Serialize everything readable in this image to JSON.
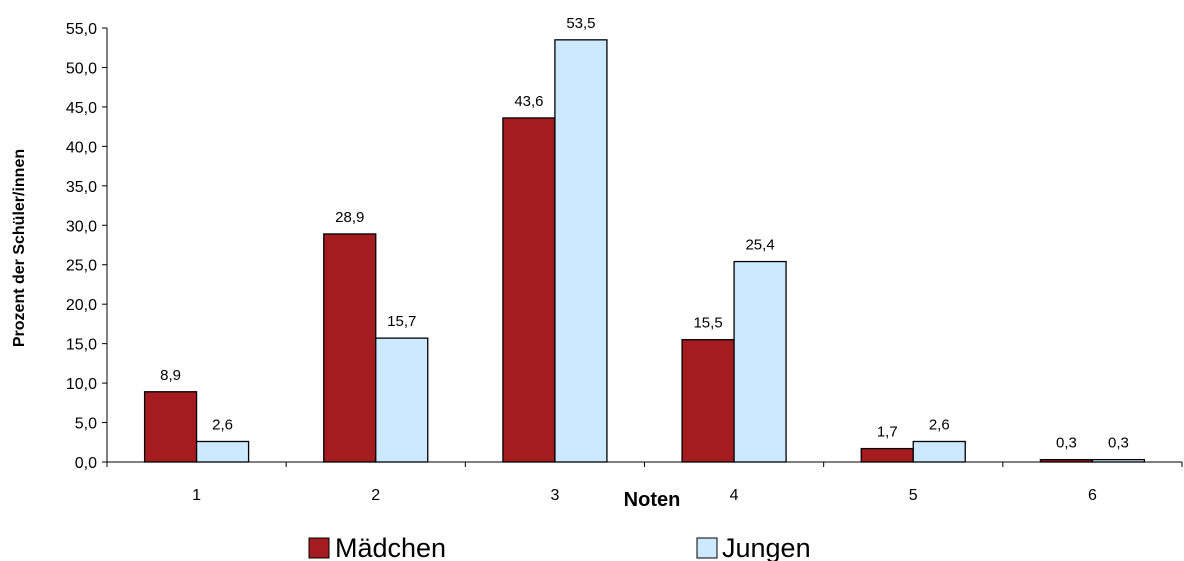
{
  "chart_data": {
    "type": "bar",
    "categories": [
      "1",
      "2",
      "3",
      "4",
      "5",
      "6"
    ],
    "series": [
      {
        "name": "Mädchen",
        "values": [
          8.9,
          28.9,
          43.6,
          15.5,
          1.7,
          0.3
        ],
        "labels": [
          "8,9",
          "28,9",
          "43,6",
          "15,5",
          "1,7",
          "0,3"
        ]
      },
      {
        "name": "Jungen",
        "values": [
          2.6,
          15.7,
          53.5,
          25.4,
          2.6,
          0.3
        ],
        "labels": [
          "2,6",
          "15,7",
          "53,5",
          "25,4",
          "2,6",
          "0,3"
        ]
      }
    ],
    "colors": [
      "#a51c20",
      "#cce9ff"
    ],
    "title": "",
    "xlabel": "Noten",
    "ylabel": "Prozent der Schüler/innen",
    "ylim": [
      0,
      55
    ],
    "yticks": [
      0,
      5,
      10,
      15,
      20,
      25,
      30,
      35,
      40,
      45,
      50,
      55
    ],
    "ytick_labels": [
      "0,0",
      "5,0",
      "10,0",
      "15,0",
      "20,0",
      "25,0",
      "30,0",
      "35,0",
      "40,0",
      "45,0",
      "50,0",
      "55,0"
    ],
    "grid": false,
    "legend": "bottom"
  }
}
